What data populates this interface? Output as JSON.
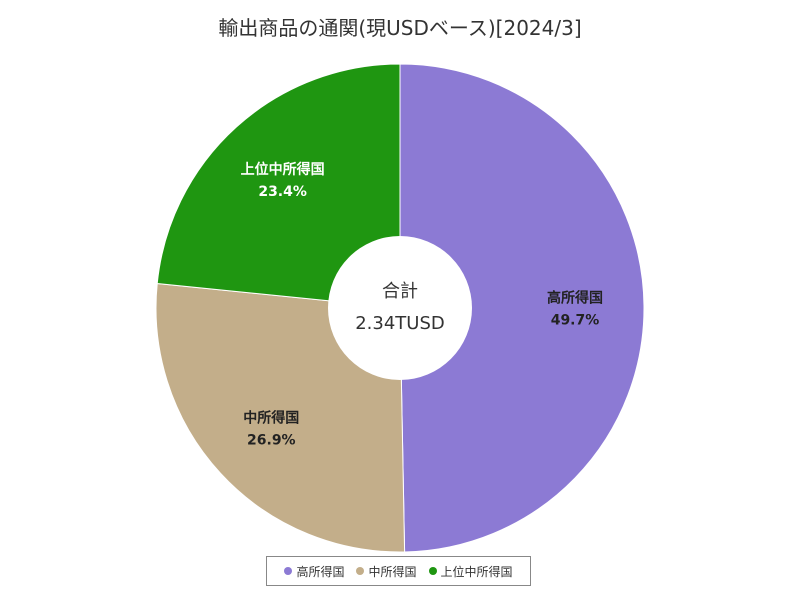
{
  "chart_data": {
    "type": "pie",
    "title": "輸出商品の通関(現USDベース)[2024/3]",
    "center_label": "合計",
    "center_value": "2.34TUSD",
    "slices": [
      {
        "name": "高所得国",
        "value": 49.7,
        "value_label": "49.7%",
        "color": "#8c7ad4",
        "label_color": "#222222"
      },
      {
        "name": "中所得国",
        "value": 26.9,
        "value_label": "26.9%",
        "color": "#c3ae8a",
        "label_color": "#222222"
      },
      {
        "name": "上位中所得国",
        "value": 23.4,
        "value_label": "23.4%",
        "color": "#1f9611",
        "label_color": "#ffffff"
      }
    ],
    "legend": [
      "高所得国",
      "中所得国",
      "上位中所得国"
    ],
    "legend_position": "bottom"
  }
}
